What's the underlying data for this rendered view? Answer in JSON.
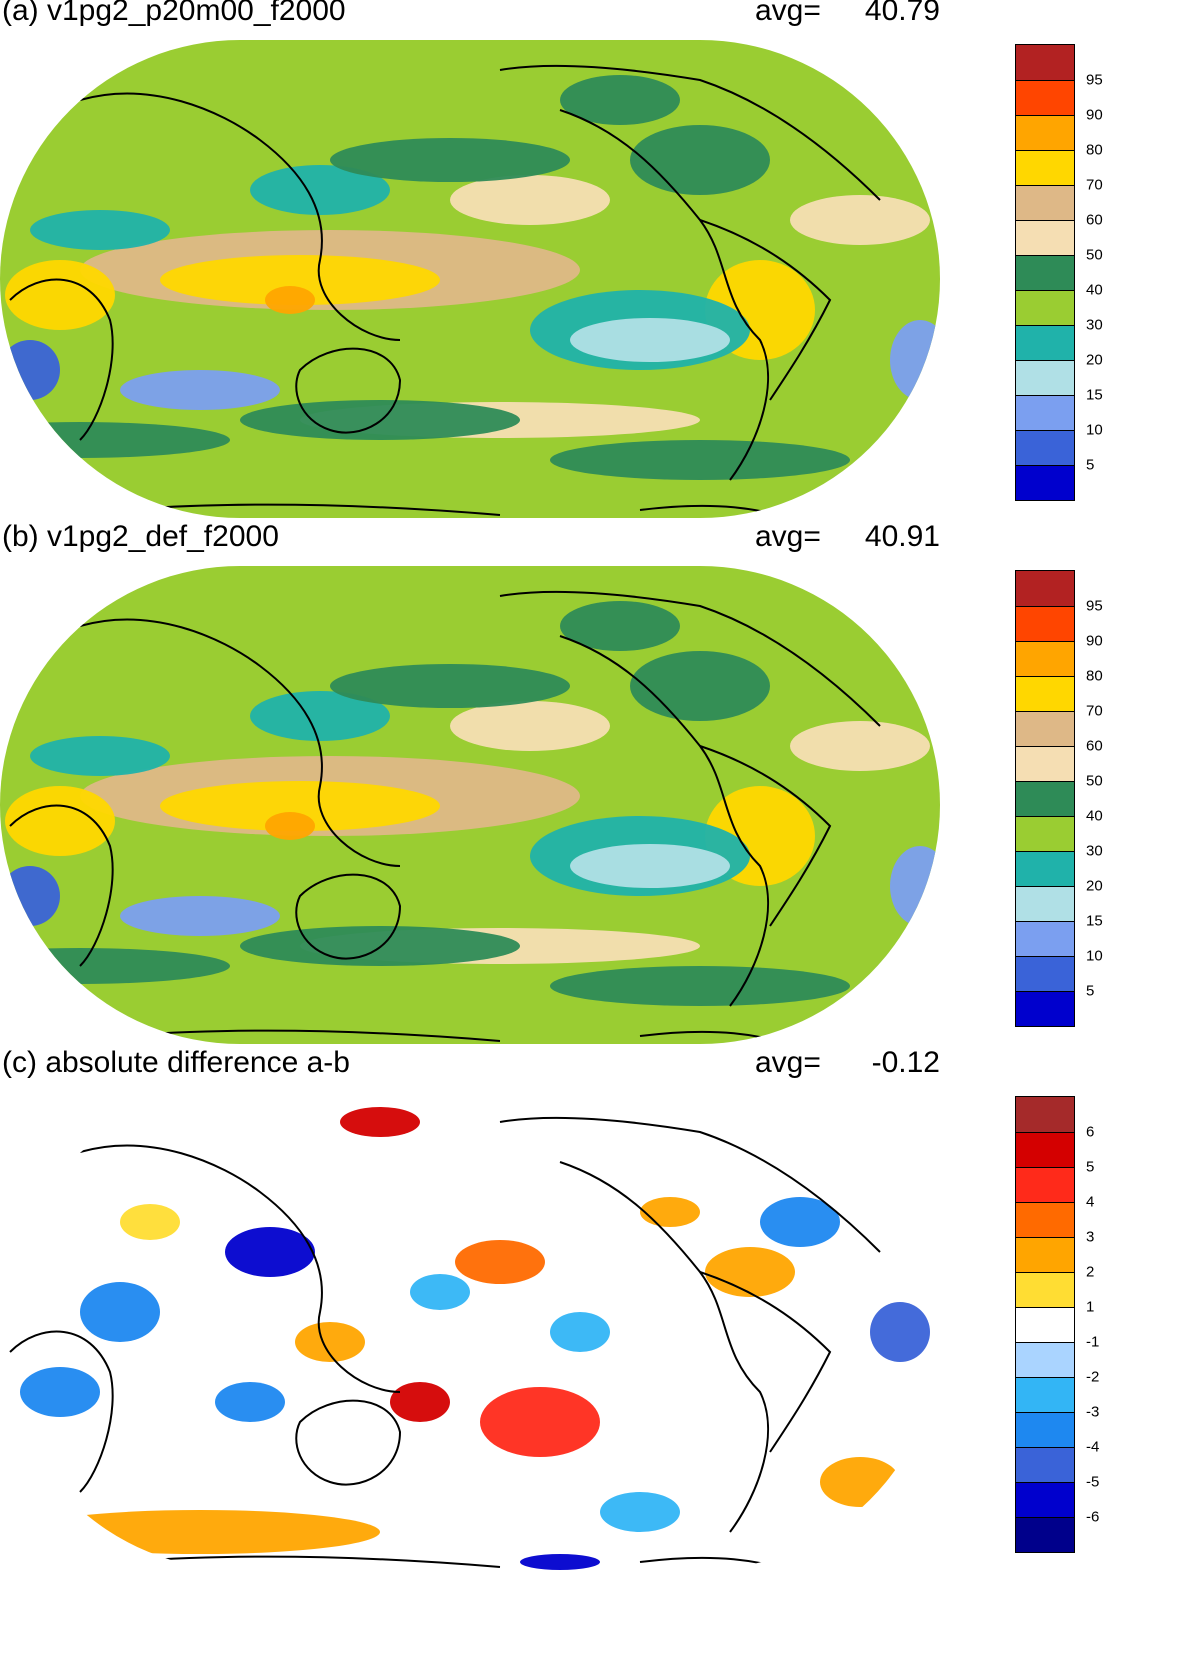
{
  "panels": [
    {
      "id": "a",
      "title": "(a) v1pg2_p20m00_f2000",
      "avg_label": "avg=",
      "avg_value": "40.79",
      "colorbar": {
        "ticks": [
          "95",
          "90",
          "80",
          "70",
          "60",
          "50",
          "40",
          "30",
          "20",
          "15",
          "10",
          "5"
        ],
        "colors": [
          "#b22222",
          "#ff4500",
          "#ffa500",
          "#ffd700",
          "#deb887",
          "#f5deb3",
          "#2e8b57",
          "#9acd32",
          "#20b2aa",
          "#b0e0e6",
          "#7b9ff0",
          "#3a63d8",
          "#0000cd"
        ]
      },
      "dominant_fill": "#9acd32"
    },
    {
      "id": "b",
      "title": "(b) v1pg2_def_f2000",
      "avg_label": "avg=",
      "avg_value": "40.91",
      "colorbar": {
        "ticks": [
          "95",
          "90",
          "80",
          "70",
          "60",
          "50",
          "40",
          "30",
          "20",
          "15",
          "10",
          "5"
        ],
        "colors": [
          "#b22222",
          "#ff4500",
          "#ffa500",
          "#ffd700",
          "#deb887",
          "#f5deb3",
          "#2e8b57",
          "#9acd32",
          "#20b2aa",
          "#b0e0e6",
          "#7b9ff0",
          "#3a63d8",
          "#0000cd"
        ]
      },
      "dominant_fill": "#9acd32"
    },
    {
      "id": "c",
      "title": "(c) absolute difference a-b",
      "avg_label": "avg=",
      "avg_value": "-0.12",
      "colorbar": {
        "ticks": [
          "6",
          "5",
          "4",
          "3",
          "2",
          "1",
          "-1",
          "-2",
          "-3",
          "-4",
          "-5",
          "-6"
        ],
        "colors": [
          "#a52a2a",
          "#d40000",
          "#ff2a1a",
          "#ff6a00",
          "#ffa500",
          "#ffdd33",
          "#ffffff",
          "#aad4ff",
          "#33b5f5",
          "#1e88f0",
          "#3a63d8",
          "#0000cd",
          "#00008b"
        ]
      },
      "dominant_fill": "#ffffff"
    }
  ]
}
